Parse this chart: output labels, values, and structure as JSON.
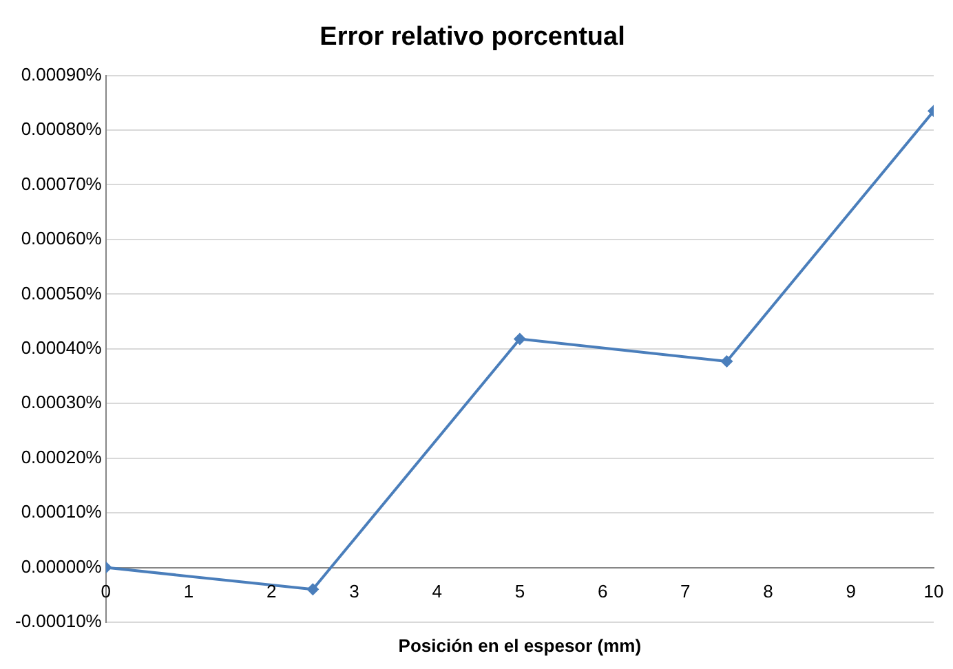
{
  "chart_data": {
    "type": "line",
    "title": "Error relativo porcentual",
    "xlabel": "Posición en el espesor (mm)",
    "x": [
      0,
      2.5,
      5,
      7.5,
      10
    ],
    "series": [
      {
        "color": "#4a7ebb",
        "values": [
          0,
          -4e-05,
          0.000418,
          0.000377,
          0.000835
        ]
      }
    ],
    "xlim": [
      0,
      10
    ],
    "xticks": [
      0,
      1,
      2,
      3,
      4,
      5,
      6,
      7,
      8,
      9,
      10
    ],
    "ylim": [
      -0.0001,
      0.0009
    ],
    "yticks": [
      {
        "value": -0.0001,
        "label": "-0.00010%"
      },
      {
        "value": 0,
        "label": "0.00000%"
      },
      {
        "value": 0.0001,
        "label": "0.00010%"
      },
      {
        "value": 0.0002,
        "label": "0.00020%"
      },
      {
        "value": 0.0003,
        "label": "0.00030%"
      },
      {
        "value": 0.0004,
        "label": "0.00040%"
      },
      {
        "value": 0.0005,
        "label": "0.00050%"
      },
      {
        "value": 0.0006,
        "label": "0.00060%"
      },
      {
        "value": 0.0007,
        "label": "0.00070%"
      },
      {
        "value": 0.0008,
        "label": "0.00080%"
      },
      {
        "value": 0.0009,
        "label": "0.00090%"
      }
    ],
    "grid": "y",
    "legend": false,
    "marker": "diamond",
    "line_style": "solid"
  }
}
